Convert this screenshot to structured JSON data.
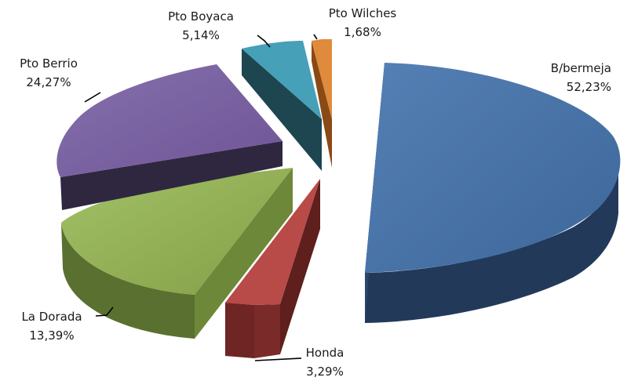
{
  "chart_data": {
    "type": "pie",
    "style": "3d-exploded",
    "title": "",
    "slices": [
      {
        "label": "B/bermeja",
        "value_text": "52,23%",
        "value": 52.23,
        "color": "#4a74a8",
        "side_color": "#22395a"
      },
      {
        "label": "Honda",
        "value_text": "3,29%",
        "value": 3.29,
        "color": "#b84a48",
        "side_color": "#6e2523"
      },
      {
        "label": "La Dorada",
        "value_text": "13,39%",
        "value": 13.39,
        "color": "#95b556",
        "side_color": "#5a7030"
      },
      {
        "label": "Pto Berrio",
        "value_text": "24,27%",
        "value": 24.27,
        "color": "#7d62a4",
        "side_color": "#2f2640"
      },
      {
        "label": "Pto Boyaca",
        "value_text": "5,14%",
        "value": 5.14,
        "color": "#45a0b8",
        "side_color": "#1d4650"
      },
      {
        "label": "Pto Wilches",
        "value_text": "1,68%",
        "value": 1.68,
        "color": "#e08a3c",
        "side_color": "#8a4a15"
      }
    ]
  }
}
